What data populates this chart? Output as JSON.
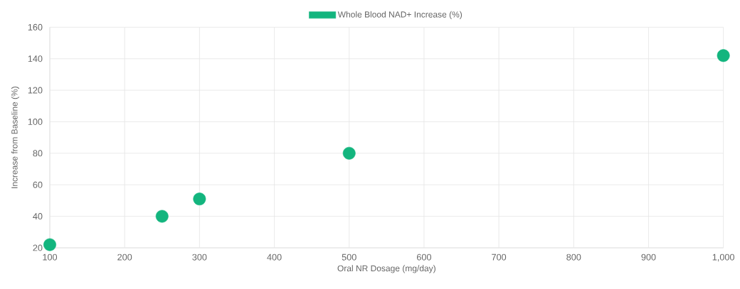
{
  "chart_data": {
    "type": "scatter",
    "xlabel": "Oral NR Dosage (mg/day)",
    "ylabel": "Increase from Baseline (%)",
    "series": [
      {
        "name": "Whole Blood NAD+ Increase (%)",
        "color": "#13b57e",
        "x": [
          100,
          250,
          300,
          500,
          1000
        ],
        "values": [
          22,
          40,
          51,
          80,
          142
        ]
      }
    ],
    "xlim": [
      100,
      1000
    ],
    "ylim": [
      20,
      160
    ],
    "xticks": [
      100,
      200,
      300,
      400,
      500,
      600,
      700,
      800,
      900,
      {
        "value": 1000,
        "label": "1,000"
      }
    ],
    "yticks": [
      20,
      40,
      60,
      80,
      100,
      120,
      140,
      160
    ],
    "grid": true,
    "legend": "top",
    "marker": "circle"
  }
}
